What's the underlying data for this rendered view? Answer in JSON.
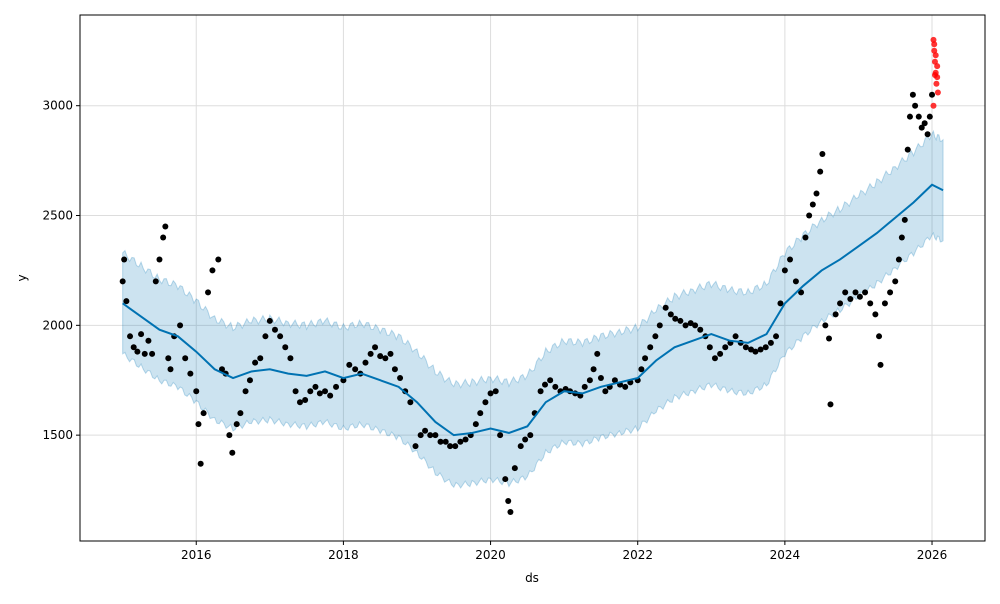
{
  "chart_data": {
    "type": "line",
    "title": "",
    "xlabel": "ds",
    "ylabel": "y",
    "xlim": [
      2014.42,
      2026.72
    ],
    "ylim": [
      1018,
      3413
    ],
    "grid": true,
    "x_ticks": [
      {
        "v": 2016,
        "label": "2016"
      },
      {
        "v": 2018,
        "label": "2018"
      },
      {
        "v": 2020,
        "label": "2020"
      },
      {
        "v": 2022,
        "label": "2022"
      },
      {
        "v": 2024,
        "label": "2024"
      },
      {
        "v": 2026,
        "label": "2026"
      }
    ],
    "y_ticks": [
      {
        "v": 1500,
        "label": "1500"
      },
      {
        "v": 2000,
        "label": "2000"
      },
      {
        "v": 2500,
        "label": "2500"
      },
      {
        "v": 3000,
        "label": "3000"
      }
    ],
    "colors": {
      "forecast": "#0072B2",
      "band": "#0072B2",
      "actual": "#000000",
      "new": "#ff0000"
    },
    "forecast": [
      [
        2015.0,
        2100
      ],
      [
        2015.25,
        2040
      ],
      [
        2015.5,
        1980
      ],
      [
        2015.75,
        1950
      ],
      [
        2016.0,
        1880
      ],
      [
        2016.25,
        1800
      ],
      [
        2016.5,
        1760
      ],
      [
        2016.75,
        1790
      ],
      [
        2017.0,
        1800
      ],
      [
        2017.25,
        1780
      ],
      [
        2017.5,
        1770
      ],
      [
        2017.75,
        1790
      ],
      [
        2018.0,
        1760
      ],
      [
        2018.25,
        1780
      ],
      [
        2018.5,
        1750
      ],
      [
        2018.75,
        1720
      ],
      [
        2019.0,
        1650
      ],
      [
        2019.25,
        1560
      ],
      [
        2019.5,
        1500
      ],
      [
        2019.75,
        1510
      ],
      [
        2020.0,
        1530
      ],
      [
        2020.25,
        1510
      ],
      [
        2020.5,
        1540
      ],
      [
        2020.75,
        1650
      ],
      [
        2021.0,
        1700
      ],
      [
        2021.25,
        1690
      ],
      [
        2021.5,
        1720
      ],
      [
        2021.75,
        1740
      ],
      [
        2022.0,
        1760
      ],
      [
        2022.25,
        1840
      ],
      [
        2022.5,
        1900
      ],
      [
        2022.75,
        1930
      ],
      [
        2023.0,
        1960
      ],
      [
        2023.25,
        1930
      ],
      [
        2023.5,
        1920
      ],
      [
        2023.75,
        1960
      ],
      [
        2024.0,
        2100
      ],
      [
        2024.25,
        2180
      ],
      [
        2024.5,
        2250
      ],
      [
        2024.75,
        2300
      ],
      [
        2025.0,
        2360
      ],
      [
        2025.25,
        2420
      ],
      [
        2025.5,
        2490
      ],
      [
        2025.75,
        2560
      ],
      [
        2026.0,
        2640
      ],
      [
        2026.15,
        2615
      ]
    ],
    "band_halfwidth": 230,
    "actual": [
      [
        2015.0,
        2200
      ],
      [
        2015.02,
        2300
      ],
      [
        2015.05,
        2110
      ],
      [
        2015.1,
        1950
      ],
      [
        2015.15,
        1900
      ],
      [
        2015.2,
        1880
      ],
      [
        2015.25,
        1960
      ],
      [
        2015.3,
        1870
      ],
      [
        2015.35,
        1930
      ],
      [
        2015.4,
        1870
      ],
      [
        2015.45,
        2200
      ],
      [
        2015.5,
        2300
      ],
      [
        2015.55,
        2400
      ],
      [
        2015.58,
        2450
      ],
      [
        2015.62,
        1850
      ],
      [
        2015.65,
        1800
      ],
      [
        2015.7,
        1950
      ],
      [
        2015.78,
        2000
      ],
      [
        2015.85,
        1850
      ],
      [
        2015.92,
        1780
      ],
      [
        2016.0,
        1700
      ],
      [
        2016.03,
        1550
      ],
      [
        2016.06,
        1370
      ],
      [
        2016.1,
        1600
      ],
      [
        2016.16,
        2150
      ],
      [
        2016.22,
        2250
      ],
      [
        2016.3,
        2300
      ],
      [
        2016.35,
        1800
      ],
      [
        2016.4,
        1780
      ],
      [
        2016.45,
        1500
      ],
      [
        2016.49,
        1420
      ],
      [
        2016.55,
        1550
      ],
      [
        2016.6,
        1600
      ],
      [
        2016.67,
        1700
      ],
      [
        2016.73,
        1750
      ],
      [
        2016.8,
        1830
      ],
      [
        2016.87,
        1850
      ],
      [
        2016.94,
        1950
      ],
      [
        2017.0,
        2020
      ],
      [
        2017.07,
        1980
      ],
      [
        2017.14,
        1950
      ],
      [
        2017.21,
        1900
      ],
      [
        2017.28,
        1850
      ],
      [
        2017.35,
        1700
      ],
      [
        2017.41,
        1650
      ],
      [
        2017.48,
        1660
      ],
      [
        2017.55,
        1700
      ],
      [
        2017.62,
        1720
      ],
      [
        2017.68,
        1690
      ],
      [
        2017.75,
        1700
      ],
      [
        2017.82,
        1680
      ],
      [
        2017.9,
        1720
      ],
      [
        2018.0,
        1750
      ],
      [
        2018.08,
        1820
      ],
      [
        2018.16,
        1800
      ],
      [
        2018.23,
        1780
      ],
      [
        2018.3,
        1830
      ],
      [
        2018.37,
        1870
      ],
      [
        2018.43,
        1900
      ],
      [
        2018.5,
        1860
      ],
      [
        2018.57,
        1850
      ],
      [
        2018.64,
        1870
      ],
      [
        2018.7,
        1800
      ],
      [
        2018.77,
        1760
      ],
      [
        2018.84,
        1700
      ],
      [
        2018.91,
        1650
      ],
      [
        2018.98,
        1450
      ],
      [
        2019.05,
        1500
      ],
      [
        2019.11,
        1520
      ],
      [
        2019.18,
        1500
      ],
      [
        2019.25,
        1500
      ],
      [
        2019.32,
        1470
      ],
      [
        2019.39,
        1470
      ],
      [
        2019.45,
        1450
      ],
      [
        2019.52,
        1450
      ],
      [
        2019.59,
        1470
      ],
      [
        2019.66,
        1480
      ],
      [
        2019.73,
        1500
      ],
      [
        2019.8,
        1550
      ],
      [
        2019.86,
        1600
      ],
      [
        2019.93,
        1650
      ],
      [
        2020.0,
        1690
      ],
      [
        2020.07,
        1700
      ],
      [
        2020.13,
        1500
      ],
      [
        2020.2,
        1300
      ],
      [
        2020.24,
        1200
      ],
      [
        2020.27,
        1150
      ],
      [
        2020.33,
        1350
      ],
      [
        2020.41,
        1450
      ],
      [
        2020.47,
        1480
      ],
      [
        2020.54,
        1500
      ],
      [
        2020.6,
        1600
      ],
      [
        2020.68,
        1700
      ],
      [
        2020.74,
        1730
      ],
      [
        2020.81,
        1750
      ],
      [
        2020.88,
        1720
      ],
      [
        2020.95,
        1700
      ],
      [
        2021.02,
        1710
      ],
      [
        2021.08,
        1700
      ],
      [
        2021.15,
        1690
      ],
      [
        2021.22,
        1680
      ],
      [
        2021.28,
        1720
      ],
      [
        2021.35,
        1750
      ],
      [
        2021.4,
        1800
      ],
      [
        2021.45,
        1870
      ],
      [
        2021.5,
        1760
      ],
      [
        2021.56,
        1700
      ],
      [
        2021.62,
        1720
      ],
      [
        2021.69,
        1750
      ],
      [
        2021.76,
        1730
      ],
      [
        2021.83,
        1720
      ],
      [
        2021.9,
        1740
      ],
      [
        2022.0,
        1750
      ],
      [
        2022.05,
        1800
      ],
      [
        2022.1,
        1850
      ],
      [
        2022.17,
        1900
      ],
      [
        2022.24,
        1950
      ],
      [
        2022.3,
        2000
      ],
      [
        2022.38,
        2080
      ],
      [
        2022.45,
        2050
      ],
      [
        2022.51,
        2030
      ],
      [
        2022.58,
        2020
      ],
      [
        2022.65,
        2000
      ],
      [
        2022.72,
        2010
      ],
      [
        2022.78,
        2000
      ],
      [
        2022.85,
        1980
      ],
      [
        2022.92,
        1950
      ],
      [
        2022.98,
        1900
      ],
      [
        2023.05,
        1850
      ],
      [
        2023.12,
        1870
      ],
      [
        2023.19,
        1900
      ],
      [
        2023.26,
        1920
      ],
      [
        2023.33,
        1950
      ],
      [
        2023.4,
        1920
      ],
      [
        2023.47,
        1900
      ],
      [
        2023.54,
        1890
      ],
      [
        2023.6,
        1880
      ],
      [
        2023.67,
        1890
      ],
      [
        2023.74,
        1900
      ],
      [
        2023.81,
        1920
      ],
      [
        2023.88,
        1950
      ],
      [
        2023.94,
        2100
      ],
      [
        2024.0,
        2250
      ],
      [
        2024.07,
        2300
      ],
      [
        2024.15,
        2200
      ],
      [
        2024.22,
        2150
      ],
      [
        2024.28,
        2400
      ],
      [
        2024.33,
        2500
      ],
      [
        2024.38,
        2550
      ],
      [
        2024.43,
        2600
      ],
      [
        2024.48,
        2700
      ],
      [
        2024.51,
        2780
      ],
      [
        2024.55,
        2000
      ],
      [
        2024.6,
        1940
      ],
      [
        2024.62,
        1640
      ],
      [
        2024.69,
        2050
      ],
      [
        2024.75,
        2100
      ],
      [
        2024.82,
        2150
      ],
      [
        2024.89,
        2120
      ],
      [
        2024.96,
        2150
      ],
      [
        2025.02,
        2130
      ],
      [
        2025.09,
        2150
      ],
      [
        2025.16,
        2100
      ],
      [
        2025.23,
        2050
      ],
      [
        2025.28,
        1950
      ],
      [
        2025.3,
        1820
      ],
      [
        2025.36,
        2100
      ],
      [
        2025.43,
        2150
      ],
      [
        2025.5,
        2200
      ],
      [
        2025.55,
        2300
      ],
      [
        2025.59,
        2400
      ],
      [
        2025.63,
        2480
      ],
      [
        2025.67,
        2800
      ],
      [
        2025.7,
        2950
      ],
      [
        2025.74,
        3050
      ],
      [
        2025.77,
        3000
      ],
      [
        2025.82,
        2950
      ],
      [
        2025.86,
        2900
      ],
      [
        2025.9,
        2920
      ],
      [
        2025.94,
        2870
      ],
      [
        2025.97,
        2950
      ],
      [
        2026.0,
        3050
      ]
    ],
    "new_points": [
      [
        2026.02,
        3300
      ],
      [
        2026.03,
        3250
      ],
      [
        2026.04,
        3200
      ],
      [
        2026.05,
        3150
      ],
      [
        2026.06,
        3100
      ],
      [
        2026.07,
        3130
      ],
      [
        2026.08,
        3060
      ],
      [
        2026.03,
        3280
      ],
      [
        2026.05,
        3230
      ],
      [
        2026.07,
        3180
      ],
      [
        2026.02,
        3000
      ],
      [
        2026.04,
        3140
      ]
    ]
  }
}
